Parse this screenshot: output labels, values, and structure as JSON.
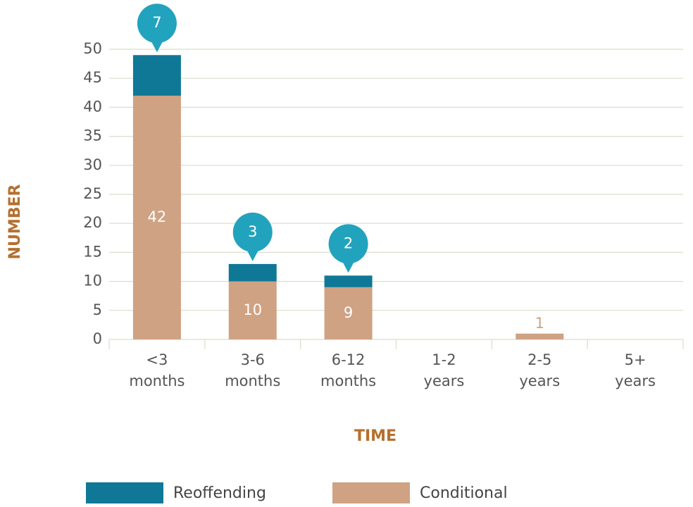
{
  "chart_data": {
    "type": "stacked_bar",
    "categories": [
      "<3 months",
      "3-6 months",
      "6-12 months",
      "1-2 years",
      "2-5 years",
      "5+ years"
    ],
    "series": [
      {
        "name": "Conditional",
        "color": "#cfa283",
        "values": [
          42,
          10,
          9,
          0,
          1,
          0
        ]
      },
      {
        "name": "Reoffending",
        "color": "#0f7896",
        "values": [
          7,
          3,
          2,
          0,
          0,
          0
        ]
      }
    ],
    "bubble_color": "#22a3bd",
    "xlabel": "TIME",
    "ylabel": "NUMBER",
    "ylim": [
      0,
      50
    ],
    "yticks": [
      0,
      5,
      10,
      15,
      20,
      25,
      30,
      35,
      40,
      45,
      50
    ],
    "grid": true
  }
}
